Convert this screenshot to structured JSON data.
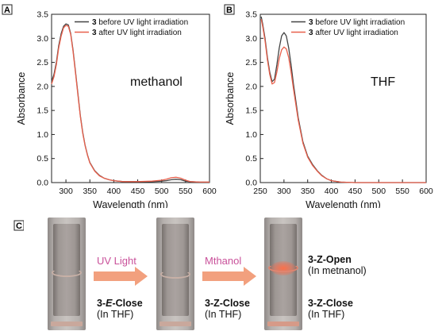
{
  "chart_data": [
    {
      "panel": "A",
      "type": "line",
      "annotation": "methanol",
      "xlabel": "Wavelength (nm)",
      "ylabel": "Absorbance",
      "xlim": [
        270,
        600
      ],
      "ylim": [
        0,
        3.5
      ],
      "xticks": [
        "300",
        "350",
        "400",
        "450",
        "500",
        "550",
        "600"
      ],
      "yticks": [
        "0.0",
        "0.5",
        "1.0",
        "1.5",
        "2.0",
        "2.5",
        "3.0",
        "3.5"
      ],
      "legend_position": "top-right",
      "series": [
        {
          "name": "3 before UV light irradiation",
          "bold_prefix": "3",
          "label_rest": " before UV light irradiation",
          "color": "#444444",
          "x": [
            270,
            275,
            280,
            285,
            290,
            295,
            300,
            305,
            310,
            315,
            320,
            325,
            330,
            335,
            340,
            345,
            350,
            360,
            370,
            380,
            390,
            400,
            420,
            450,
            480,
            500,
            510,
            520,
            530,
            540,
            550,
            560,
            580,
            600
          ],
          "y": [
            2.1,
            2.25,
            2.5,
            2.85,
            3.1,
            3.25,
            3.3,
            3.28,
            3.1,
            2.75,
            2.3,
            1.85,
            1.4,
            1.05,
            0.78,
            0.58,
            0.42,
            0.25,
            0.15,
            0.09,
            0.06,
            0.04,
            0.02,
            0.02,
            0.02,
            0.03,
            0.04,
            0.06,
            0.07,
            0.06,
            0.03,
            0.02,
            0.01,
            0.01
          ]
        },
        {
          "name": "3 after UV light irradiation",
          "bold_prefix": "3",
          "label_rest": " after UV light irradiation",
          "color": "#e8604c",
          "x": [
            270,
            275,
            280,
            285,
            290,
            295,
            300,
            305,
            310,
            315,
            320,
            325,
            330,
            335,
            340,
            345,
            350,
            360,
            370,
            380,
            390,
            400,
            420,
            450,
            480,
            500,
            510,
            520,
            530,
            540,
            550,
            560,
            580,
            600
          ],
          "y": [
            2.05,
            2.2,
            2.45,
            2.8,
            3.05,
            3.22,
            3.27,
            3.25,
            3.08,
            2.72,
            2.27,
            1.82,
            1.38,
            1.03,
            0.77,
            0.57,
            0.41,
            0.24,
            0.14,
            0.09,
            0.06,
            0.04,
            0.02,
            0.02,
            0.03,
            0.05,
            0.07,
            0.1,
            0.11,
            0.09,
            0.05,
            0.02,
            0.01,
            0.01
          ]
        }
      ]
    },
    {
      "panel": "B",
      "type": "line",
      "annotation": "THF",
      "xlabel": "Wavelength (nm)",
      "ylabel": "Absorbance",
      "xlim": [
        250,
        600
      ],
      "ylim": [
        0,
        3.5
      ],
      "xticks": [
        "250",
        "300",
        "350",
        "400",
        "450",
        "500",
        "550",
        "600"
      ],
      "yticks": [
        "0.0",
        "0.5",
        "1.0",
        "1.5",
        "2.0",
        "2.5",
        "3.0",
        "3.5"
      ],
      "legend_position": "top-right",
      "series": [
        {
          "name": "3 before UV light irradiation",
          "bold_prefix": "3",
          "label_rest": " before UV light irradiation",
          "color": "#444444",
          "x": [
            252,
            255,
            260,
            265,
            270,
            275,
            280,
            285,
            290,
            295,
            300,
            305,
            310,
            315,
            320,
            330,
            340,
            350,
            360,
            370,
            380,
            390,
            400,
            420,
            450,
            500,
            550,
            600
          ],
          "y": [
            3.45,
            3.3,
            3.0,
            2.6,
            2.3,
            2.1,
            2.15,
            2.45,
            2.8,
            3.05,
            3.12,
            3.05,
            2.8,
            2.45,
            2.05,
            1.35,
            0.85,
            0.55,
            0.38,
            0.25,
            0.15,
            0.08,
            0.04,
            0.01,
            0.0,
            0.0,
            0.0,
            0.0
          ]
        },
        {
          "name": "3 after UV light irradiation",
          "bold_prefix": "3",
          "label_rest": " after UV light irradiation",
          "color": "#e8604c",
          "x": [
            252,
            255,
            260,
            265,
            270,
            275,
            280,
            285,
            290,
            295,
            300,
            305,
            310,
            315,
            320,
            330,
            340,
            350,
            360,
            370,
            380,
            390,
            400,
            420,
            450,
            500,
            550,
            600
          ],
          "y": [
            3.4,
            3.25,
            2.95,
            2.55,
            2.25,
            2.05,
            2.08,
            2.3,
            2.58,
            2.76,
            2.82,
            2.78,
            2.6,
            2.3,
            1.95,
            1.3,
            0.82,
            0.53,
            0.36,
            0.24,
            0.14,
            0.08,
            0.04,
            0.01,
            0.0,
            0.0,
            0.0,
            0.0
          ]
        }
      ]
    }
  ],
  "panel_a": {
    "letter": "A"
  },
  "panel_b": {
    "letter": "B"
  },
  "panel_c": {
    "letter": "C",
    "arrow1_label": "UV Light",
    "arrow2_label": "Mthanol",
    "cuvette1_line1_prefix": "3-",
    "cuvette1_line1_italic": "E",
    "cuvette1_line1_suffix": "-Close",
    "cuvette1_line2": "(In THF)",
    "cuvette2_line1": "3-Z-Close",
    "cuvette2_line2": "(In THF)",
    "cuvette3_top_line1": "3-Z-Open",
    "cuvette3_top_line2": "(In metnanol)",
    "cuvette3_bottom_line1": "3-Z-Close",
    "cuvette3_bottom_line2": "(In THF)",
    "arrow_color": "#f2a07e"
  }
}
